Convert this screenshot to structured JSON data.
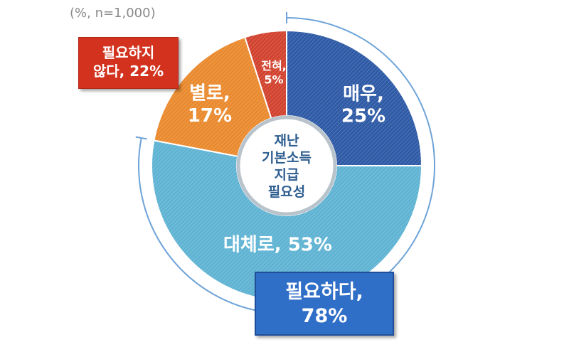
{
  "note": "(%, n=1,000)",
  "center": {
    "lines": [
      "재난",
      "기본소득",
      "지급",
      "필요성"
    ]
  },
  "summary_need": {
    "line1": "필요하다,",
    "line2": "78%"
  },
  "summary_noneed": {
    "line1": "필요하지",
    "line2": "않다, 22%"
  },
  "colors": {
    "very": "#2e5aa6",
    "mostly": "#5fb3d3",
    "not_really": "#ea8a2e",
    "not_at_all": "#d2432f",
    "need_box": "#2f6fc7",
    "noneed_box": "#d2321e"
  },
  "chart_data": {
    "type": "pie",
    "title": "",
    "unit": "%",
    "n": "1,000",
    "slices": [
      {
        "name": "매우",
        "value": 25,
        "label_lines": [
          "매우,",
          "25%"
        ]
      },
      {
        "name": "대체로",
        "value": 53,
        "label_lines": [
          "대체로, 53%"
        ]
      },
      {
        "name": "별로",
        "value": 17,
        "label_lines": [
          "별로,",
          "17%"
        ]
      },
      {
        "name": "전혀",
        "value": 5,
        "label_lines": [
          "전혀,",
          "5%"
        ]
      }
    ],
    "groups": [
      {
        "name": "필요하다",
        "value": 78
      },
      {
        "name": "필요하지 않다",
        "value": 22
      }
    ]
  }
}
